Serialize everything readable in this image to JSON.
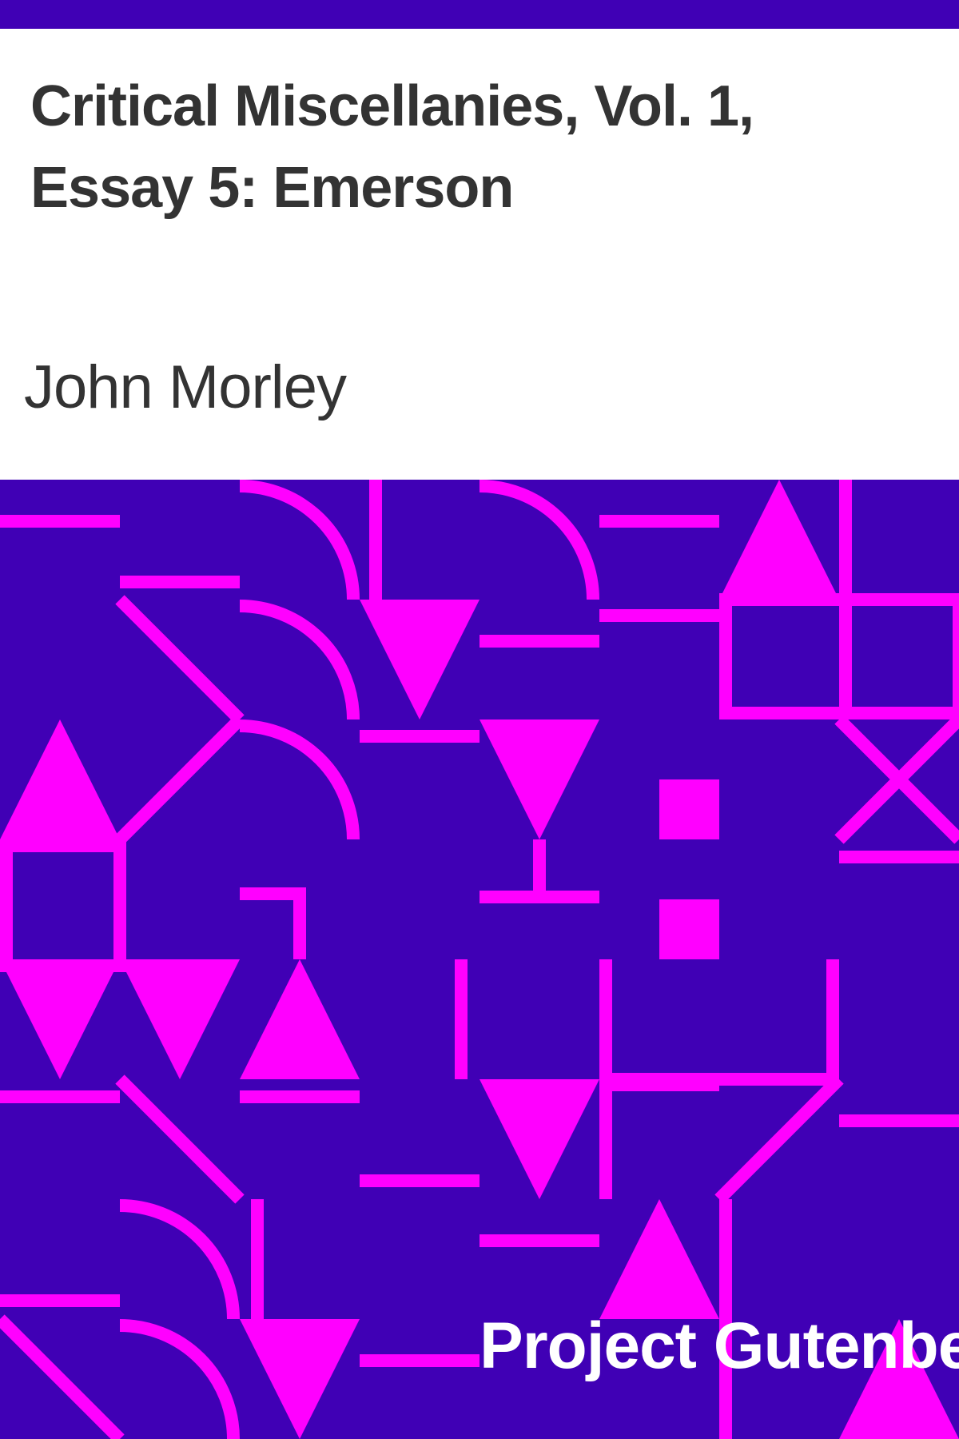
{
  "cover": {
    "title": "Critical Miscellanies, Vol. 1, Essay 5: Emerson",
    "author": "John Morley",
    "publisher": "Project Gutenberg"
  },
  "colors": {
    "background": "#4000b5",
    "pattern": "#ff00ff",
    "title_text": "#333333",
    "publisher_text": "#ffffff"
  }
}
